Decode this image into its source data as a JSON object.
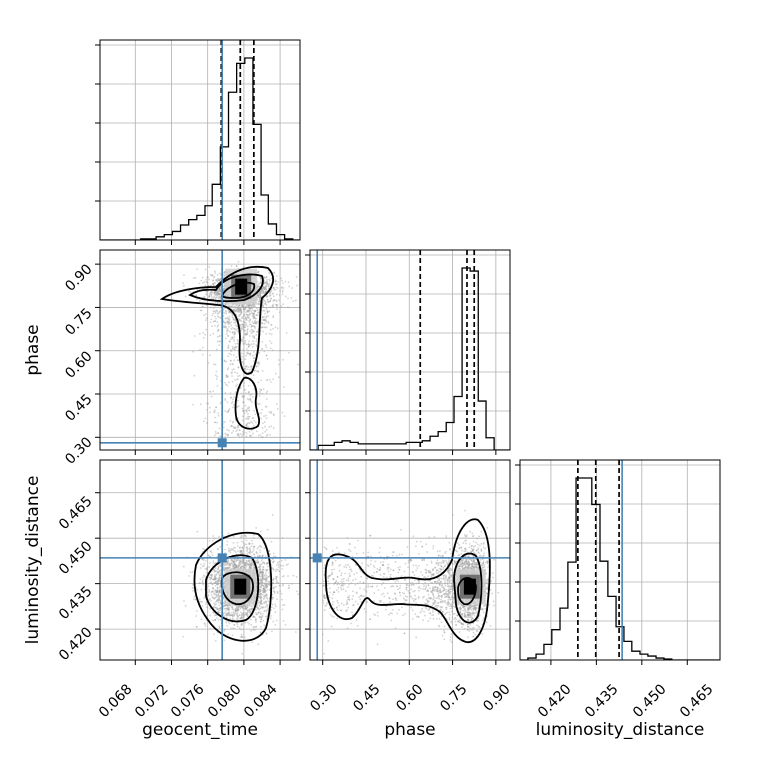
{
  "chart_data": {
    "type": "corner",
    "parameters": [
      "geocent_time",
      "phase",
      "luminosity_distance"
    ],
    "ranges": {
      "geocent_time": [
        0.0641,
        0.0862
      ],
      "phase": [
        0.256,
        0.949
      ],
      "luminosity_distance": [
        0.4098,
        0.4758
      ]
    },
    "ticks": {
      "geocent_time": [
        "0.068",
        "0.072",
        "0.076",
        "0.080",
        "0.084"
      ],
      "phase": [
        "0.30",
        "0.45",
        "0.60",
        "0.75",
        "0.90"
      ],
      "luminosity_distance": [
        "0.420",
        "0.435",
        "0.450",
        "0.465"
      ]
    },
    "truths": {
      "geocent_time": 0.0776,
      "phase": 0.281,
      "luminosity_distance": 0.4435
    },
    "quantiles": {
      "geocent_time": [
        0.0775,
        0.0796,
        0.0811
      ],
      "phase": [
        0.638,
        0.8,
        0.825
      ],
      "luminosity_distance": [
        0.4289,
        0.4348,
        0.4425
      ]
    },
    "marginals": {
      "geocent_time": {
        "edges": [
          0.0641,
          0.065,
          0.0659,
          0.0668,
          0.0677,
          0.0686,
          0.0695,
          0.0703,
          0.0712,
          0.0721,
          0.073,
          0.0739,
          0.0748,
          0.0757,
          0.0765,
          0.0774,
          0.0783,
          0.0792,
          0.0801,
          0.081,
          0.0819,
          0.0827,
          0.0836,
          0.0845,
          0.0854,
          0.0862
        ],
        "counts": [
          0,
          0,
          0,
          0,
          0,
          1,
          1,
          3,
          5,
          8,
          14,
          19,
          23,
          32,
          52,
          87,
          138,
          165,
          170,
          108,
          42,
          15,
          5,
          1,
          0
        ]
      },
      "phase": {
        "edges": [
          0.256,
          0.284,
          0.312,
          0.34,
          0.367,
          0.395,
          0.423,
          0.451,
          0.478,
          0.506,
          0.534,
          0.561,
          0.589,
          0.617,
          0.645,
          0.672,
          0.7,
          0.728,
          0.755,
          0.783,
          0.811,
          0.839,
          0.866,
          0.894,
          0.922,
          0.949
        ],
        "counts": [
          0,
          3,
          3,
          5,
          6,
          5,
          4,
          4,
          4,
          4,
          4,
          4,
          5,
          5,
          6,
          9,
          12,
          18,
          35,
          119,
          117,
          32,
          8,
          0,
          0
        ]
      },
      "luminosity_distance": {
        "edges": [
          0.4098,
          0.4124,
          0.4151,
          0.4177,
          0.4203,
          0.423,
          0.4256,
          0.4283,
          0.4309,
          0.4335,
          0.4362,
          0.4388,
          0.4415,
          0.4441,
          0.4467,
          0.4494,
          0.452,
          0.4547,
          0.4573,
          0.4599,
          0.4626,
          0.4652,
          0.4679,
          0.4705,
          0.4731,
          0.4758
        ],
        "counts": [
          0,
          2,
          6,
          16,
          31,
          53,
          100,
          186,
          186,
          159,
          101,
          65,
          34,
          19,
          9,
          6,
          4,
          2,
          1,
          0,
          0,
          0,
          0,
          0,
          0
        ]
      }
    },
    "density_peaks": [
      {
        "x": "geocent_time",
        "y": "phase",
        "center": [
          0.0797,
          0.822
        ]
      },
      {
        "x": "geocent_time",
        "y": "luminosity_distance",
        "center": [
          0.0796,
          0.434
        ]
      },
      {
        "x": "phase",
        "y": "luminosity_distance",
        "center": [
          0.81,
          0.434
        ]
      }
    ],
    "grid": true,
    "colors": {
      "truth": "#4682b4",
      "hist": "#000000",
      "samples": "#a0a0a0",
      "grid": "#b0b0b0"
    }
  }
}
